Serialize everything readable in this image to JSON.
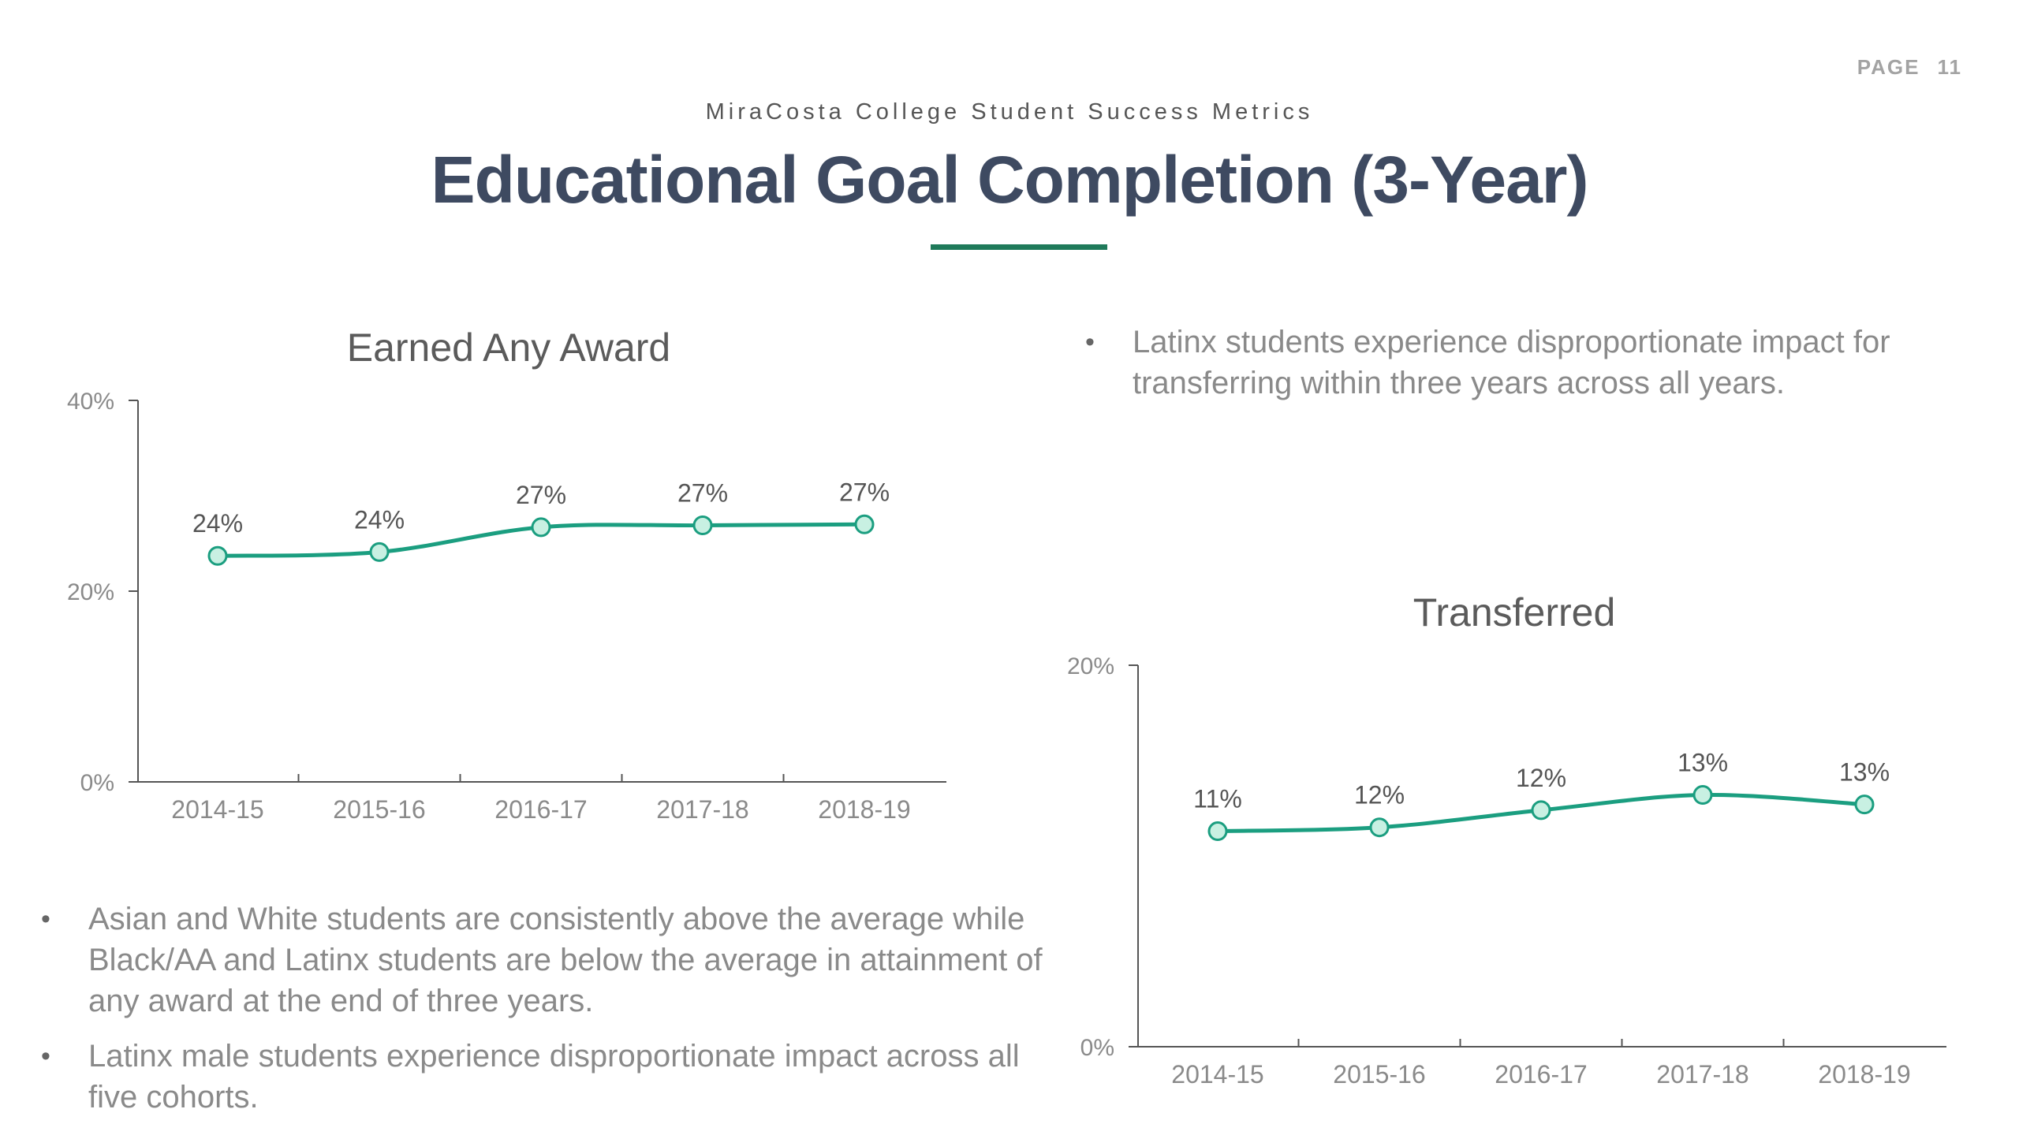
{
  "page": {
    "label": "PAGE",
    "number": "11"
  },
  "header": {
    "subtitle": "MiraCosta College Student Success Metrics",
    "title": "Educational Goal Completion (3-Year)"
  },
  "bullets_left": [
    "Asian and White students are consistently above the average while Black/AA and Latinx students are below the average in attainment of any award at the end of three years.",
    "Latinx male students experience disproportionate impact across all five cohorts."
  ],
  "bullets_right": [
    "Latinx students experience disproportionate impact for transferring within three years across all years."
  ],
  "colors": {
    "line": "#1b9e80",
    "marker_fill": "#c8f0e2",
    "axis": "#555555"
  },
  "chart_data": [
    {
      "type": "line",
      "title": "Earned Any Award",
      "categories": [
        "2014-15",
        "2015-16",
        "2016-17",
        "2017-18",
        "2018-19"
      ],
      "values": [
        23.7,
        24.1,
        26.7,
        26.9,
        27.0
      ],
      "data_labels": [
        "24%",
        "24%",
        "27%",
        "27%",
        "27%"
      ],
      "yticks": [
        "0%",
        "20%",
        "40%"
      ],
      "ylim": [
        0,
        40
      ]
    },
    {
      "type": "line",
      "title": "Transferred",
      "categories": [
        "2014-15",
        "2015-16",
        "2016-17",
        "2017-18",
        "2018-19"
      ],
      "values": [
        11.3,
        11.5,
        12.4,
        13.2,
        12.7
      ],
      "data_labels": [
        "11%",
        "12%",
        "12%",
        "13%",
        "13%"
      ],
      "yticks": [
        "0%",
        "20%"
      ],
      "ylim": [
        0,
        20
      ]
    }
  ]
}
